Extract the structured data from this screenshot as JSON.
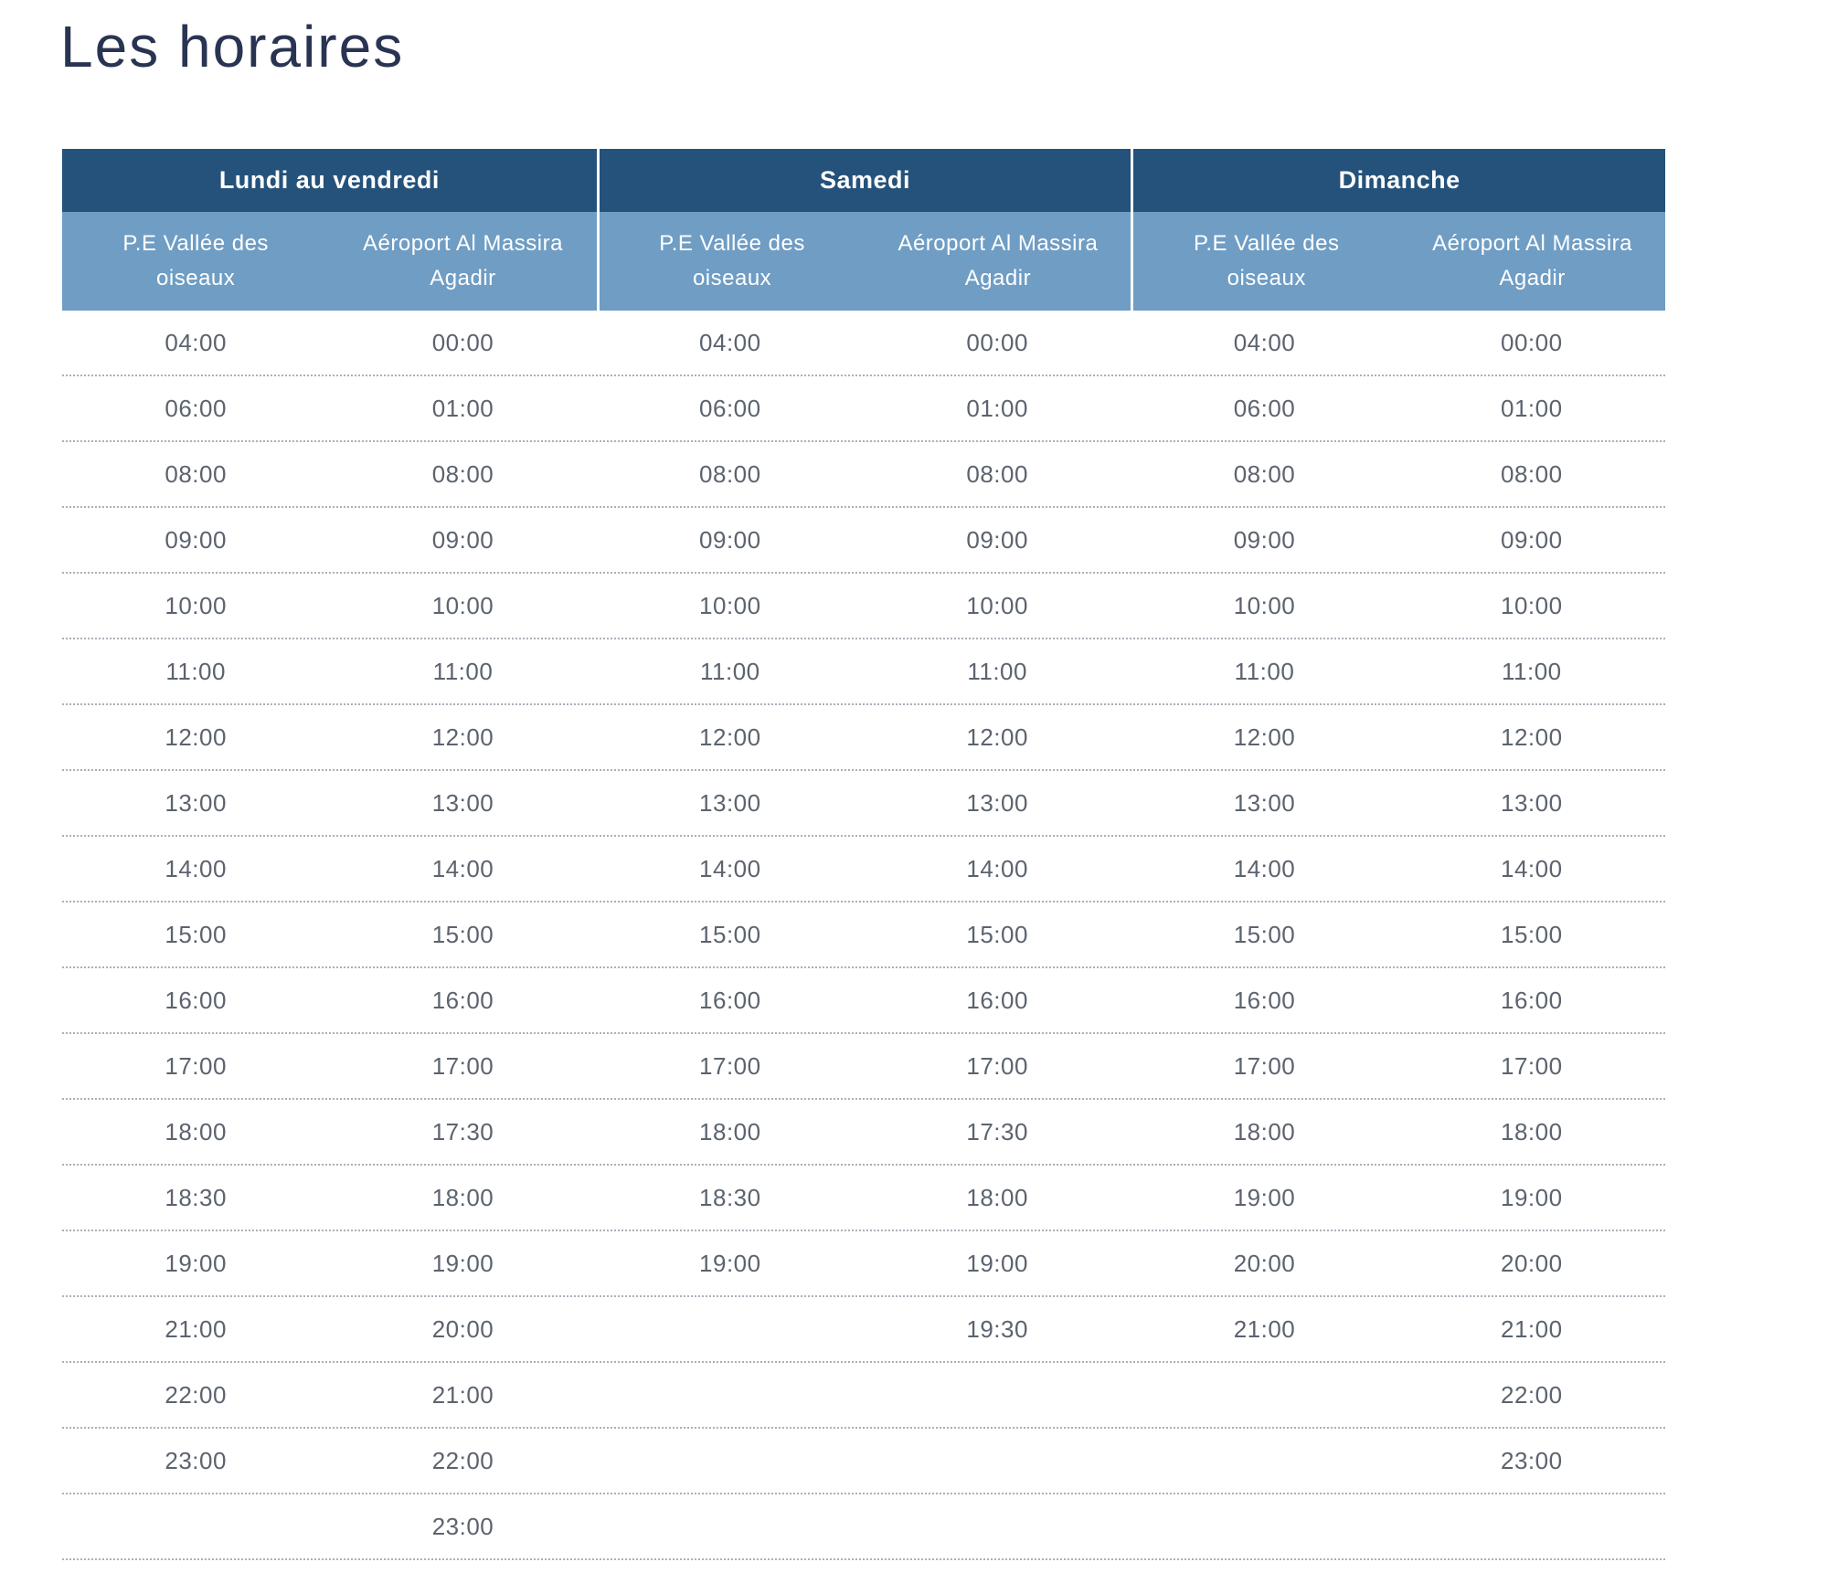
{
  "title": "Les horaires",
  "table": {
    "groups": [
      {
        "label": "Lundi au vendredi",
        "columns": [
          "P.E Vallée des oiseaux",
          "Aéroport Al Massira Agadir"
        ]
      },
      {
        "label": "Samedi",
        "columns": [
          "P.E Vallée des oiseaux",
          "Aéroport Al Massira Agadir"
        ]
      },
      {
        "label": "Dimanche",
        "columns": [
          "P.E Vallée des oiseaux",
          "Aéroport Al Massira Agadir"
        ]
      }
    ],
    "rows": [
      [
        "04:00",
        "00:00",
        "04:00",
        "00:00",
        "04:00",
        "00:00"
      ],
      [
        "06:00",
        "01:00",
        "06:00",
        "01:00",
        "06:00",
        "01:00"
      ],
      [
        "08:00",
        "08:00",
        "08:00",
        "08:00",
        "08:00",
        "08:00"
      ],
      [
        "09:00",
        "09:00",
        "09:00",
        "09:00",
        "09:00",
        "09:00"
      ],
      [
        "10:00",
        "10:00",
        "10:00",
        "10:00",
        "10:00",
        "10:00"
      ],
      [
        "11:00",
        "11:00",
        "11:00",
        "11:00",
        "11:00",
        "11:00"
      ],
      [
        "12:00",
        "12:00",
        "12:00",
        "12:00",
        "12:00",
        "12:00"
      ],
      [
        "13:00",
        "13:00",
        "13:00",
        "13:00",
        "13:00",
        "13:00"
      ],
      [
        "14:00",
        "14:00",
        "14:00",
        "14:00",
        "14:00",
        "14:00"
      ],
      [
        "15:00",
        "15:00",
        "15:00",
        "15:00",
        "15:00",
        "15:00"
      ],
      [
        "16:00",
        "16:00",
        "16:00",
        "16:00",
        "16:00",
        "16:00"
      ],
      [
        "17:00",
        "17:00",
        "17:00",
        "17:00",
        "17:00",
        "17:00"
      ],
      [
        "18:00",
        "17:30",
        "18:00",
        "17:30",
        "18:00",
        "18:00"
      ],
      [
        "18:30",
        "18:00",
        "18:30",
        "18:00",
        "19:00",
        "19:00"
      ],
      [
        "19:00",
        "19:00",
        "19:00",
        "19:00",
        "20:00",
        "20:00"
      ],
      [
        "21:00",
        "20:00",
        "",
        "19:30",
        "21:00",
        "21:00"
      ],
      [
        "22:00",
        "21:00",
        "",
        "",
        "",
        "22:00"
      ],
      [
        "23:00",
        "22:00",
        "",
        "",
        "",
        "23:00"
      ],
      [
        "",
        "23:00",
        "",
        "",
        "",
        ""
      ]
    ]
  },
  "colors": {
    "header_dark": "#24527b",
    "header_light": "#6f9dc4",
    "title_text": "#293452",
    "time_text": "#5b636e",
    "divider": "#abb0b8",
    "page_bg": "#ffffff"
  }
}
